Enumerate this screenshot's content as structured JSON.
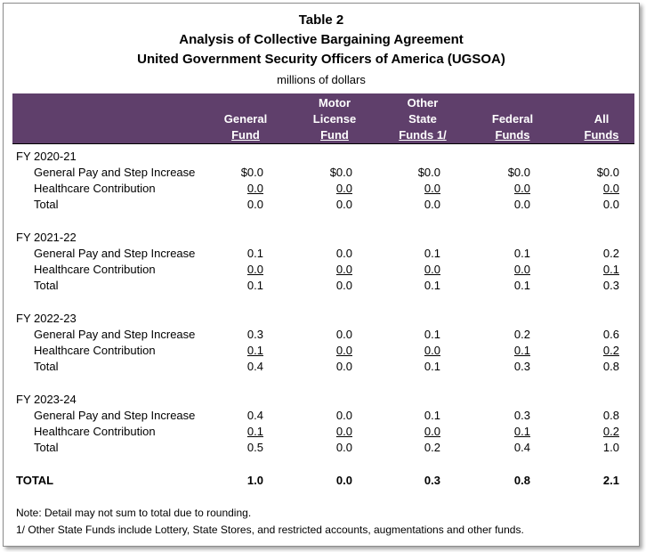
{
  "title": "Table 2",
  "subtitle1": "Analysis of Collective Bargaining Agreement",
  "subtitle2": "United Government Security Officers of America (UGSOA)",
  "units": "millions of dollars",
  "columns": [
    [
      "General",
      "Fund"
    ],
    [
      "Motor",
      "License",
      "Fund"
    ],
    [
      "Other",
      "State",
      "Funds 1/"
    ],
    [
      "Federal",
      "Funds"
    ],
    [
      "All",
      "Funds"
    ]
  ],
  "sections": [
    {
      "label": "FY 2020-21",
      "rows": [
        {
          "label": "General Pay and Step Increase",
          "values": [
            "$0.0",
            "$0.0",
            "$0.0",
            "$0.0",
            "$0.0"
          ]
        },
        {
          "label": "Healthcare Contribution",
          "values": [
            "0.0",
            "0.0",
            "0.0",
            "0.0",
            "0.0"
          ]
        },
        {
          "label": "Total",
          "values": [
            "0.0",
            "0.0",
            "0.0",
            "0.0",
            "0.0"
          ]
        }
      ]
    },
    {
      "label": "FY 2021-22",
      "rows": [
        {
          "label": "General Pay and Step Increase",
          "values": [
            "0.1",
            "0.0",
            "0.1",
            "0.1",
            "0.2"
          ]
        },
        {
          "label": "Healthcare Contribution",
          "values": [
            "0.0",
            "0.0",
            "0.0",
            "0.0",
            "0.1"
          ]
        },
        {
          "label": "Total",
          "values": [
            "0.1",
            "0.0",
            "0.1",
            "0.1",
            "0.3"
          ]
        }
      ]
    },
    {
      "label": "FY 2022-23",
      "rows": [
        {
          "label": "General Pay and Step Increase",
          "values": [
            "0.3",
            "0.0",
            "0.1",
            "0.2",
            "0.6"
          ]
        },
        {
          "label": "Healthcare Contribution",
          "values": [
            "0.1",
            "0.0",
            "0.0",
            "0.1",
            "0.2"
          ]
        },
        {
          "label": "Total",
          "values": [
            "0.4",
            "0.0",
            "0.1",
            "0.3",
            "0.8"
          ]
        }
      ]
    },
    {
      "label": "FY 2023-24",
      "rows": [
        {
          "label": "General Pay and Step Increase",
          "values": [
            "0.4",
            "0.0",
            "0.1",
            "0.3",
            "0.8"
          ]
        },
        {
          "label": "Healthcare Contribution",
          "values": [
            "0.1",
            "0.0",
            "0.0",
            "0.1",
            "0.2"
          ]
        },
        {
          "label": "Total",
          "values": [
            "0.5",
            "0.0",
            "0.2",
            "0.4",
            "1.0"
          ]
        }
      ]
    }
  ],
  "grand_total": {
    "label": "TOTAL",
    "values": [
      "1.0",
      "0.0",
      "0.3",
      "0.8",
      "2.1"
    ]
  },
  "notes": [
    "Note: Detail may not sum to total due to rounding.",
    "1/ Other State Funds include Lottery, State Stores, and restricted accounts, augmentations and other funds."
  ],
  "colors": {
    "header_bg": "#5f3f6b",
    "header_text": "#ffffff"
  }
}
